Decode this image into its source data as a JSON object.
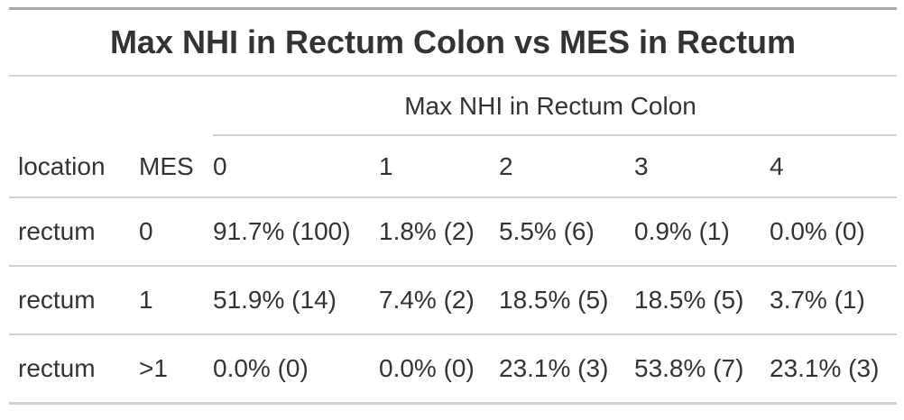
{
  "table": {
    "title": "Max NHI in Rectum Colon vs MES in Rectum",
    "spanner": "Max NHI in Rectum Colon",
    "columns": [
      "location",
      "MES",
      "0",
      "1",
      "2",
      "3",
      "4"
    ],
    "rows": [
      [
        "rectum",
        "0",
        "91.7% (100)",
        "1.8% (2)",
        "5.5% (6)",
        "0.9% (1)",
        "0.0% (0)"
      ],
      [
        "rectum",
        "1",
        "51.9% (14)",
        "7.4% (2)",
        "18.5% (5)",
        "18.5% (5)",
        "3.7% (1)"
      ],
      [
        "rectum",
        ">1",
        "0.0% (0)",
        "0.0% (0)",
        "23.1% (3)",
        "53.8% (7)",
        "23.1% (3)"
      ]
    ]
  }
}
